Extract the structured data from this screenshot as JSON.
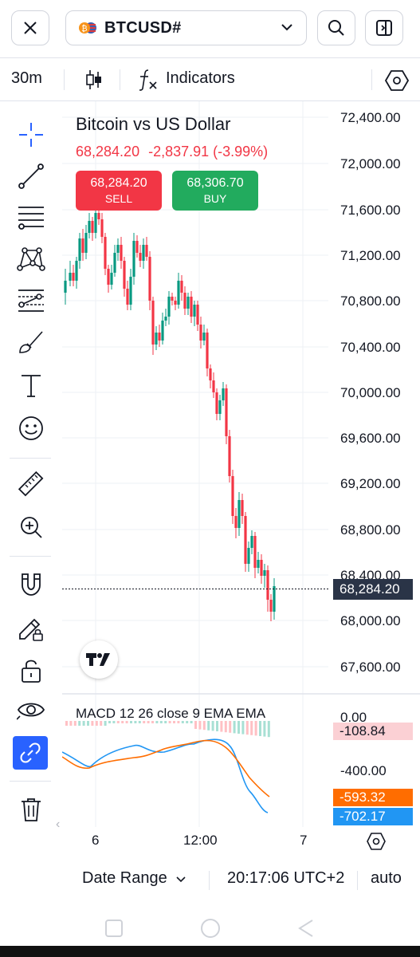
{
  "header": {
    "close_icon": "close-icon",
    "symbol": "BTCUSD#",
    "search_icon": "search-icon",
    "layout_icon": "panel-toggle-icon"
  },
  "toolbar": {
    "interval": "30m",
    "indicators_label": "Indicators"
  },
  "sidebar": {
    "tools": [
      "crosshair-icon",
      "trendline-icon",
      "fib-icon",
      "pattern-icon",
      "prediction-icon",
      "brush-icon",
      "text-icon",
      "emoji-icon",
      "ruler-icon",
      "zoom-icon",
      "magnet-icon",
      "lock-drawing-icon",
      "unlock-icon",
      "eye-icon",
      "link-icon",
      "trash-icon"
    ]
  },
  "chart": {
    "title": "Bitcoin vs US Dollar",
    "last_price": "68,284.20",
    "change": "-2,837.91 (-3.99%)",
    "sell_price": "68,284.20",
    "sell_label": "SELL",
    "buy_price": "68,306.70",
    "buy_label": "BUY",
    "current_price_tag": "68,284.20",
    "price_axis": [
      "72,400.00",
      "72,000.00",
      "71,600.00",
      "71,200.00",
      "70,800.00",
      "70,400.00",
      "70,000.00",
      "69,600.00",
      "69,200.00",
      "68,800.00",
      "68,400.00",
      "68,000.00",
      "67,600.00"
    ],
    "time_axis": [
      "6",
      "12:00",
      "7"
    ],
    "colors": {
      "up": "#089981",
      "down": "#f23645",
      "buy": "#22ab5e",
      "sell": "#f23645"
    }
  },
  "macd": {
    "title": "MACD 12 26 close 9 EMA EMA",
    "axis": [
      "0.00",
      "-400.00"
    ],
    "histogram_tag": "-108.84",
    "signal_tag": "-593.32",
    "macd_tag": "-702.17",
    "colors": {
      "macd": "#2196f3",
      "signal": "#ff6d00"
    }
  },
  "bottombar": {
    "date_range": "Date Range",
    "time": "20:17:06 UTC+2",
    "scale": "auto"
  }
}
